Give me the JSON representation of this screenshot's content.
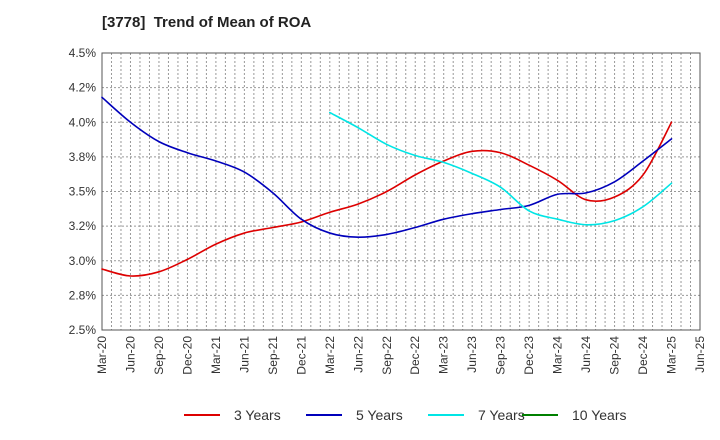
{
  "title": "[3778]  Trend of Mean of ROA",
  "chart_data": {
    "type": "line",
    "title": "[3778]  Trend of Mean of ROA",
    "x_categories": [
      "Mar-20",
      "Jun-20",
      "Sep-20",
      "Dec-20",
      "Mar-21",
      "Jun-21",
      "Sep-21",
      "Dec-21",
      "Mar-22",
      "Jun-22",
      "Sep-22",
      "Dec-22",
      "Mar-23",
      "Jun-23",
      "Sep-23",
      "Dec-23",
      "Mar-24",
      "Jun-24",
      "Sep-24",
      "Dec-24",
      "Mar-25",
      "Jun-25"
    ],
    "y_ticks": [
      "2.5%",
      "2.8%",
      "3.0%",
      "3.2%",
      "3.5%",
      "3.8%",
      "4.0%",
      "4.2%",
      "4.5%"
    ],
    "ylim": [
      2.5,
      4.5
    ],
    "grid": true,
    "legend_position": "bottom",
    "series": [
      {
        "name": "3 Years",
        "color": "#dd0000",
        "values": [
          2.94,
          2.89,
          2.92,
          3.01,
          3.12,
          3.2,
          3.24,
          3.28,
          3.35,
          3.41,
          3.5,
          3.62,
          3.72,
          3.79,
          3.78,
          3.69,
          3.58,
          3.44,
          3.46,
          3.62,
          4.0,
          null
        ]
      },
      {
        "name": "5 Years",
        "color": "#0000bb",
        "values": [
          4.18,
          4.0,
          3.86,
          3.78,
          3.72,
          3.64,
          3.49,
          3.3,
          3.2,
          3.17,
          3.19,
          3.24,
          3.3,
          3.34,
          3.37,
          3.4,
          3.48,
          3.49,
          3.57,
          3.72,
          3.88,
          null
        ]
      },
      {
        "name": "7 Years",
        "color": "#00e5e5",
        "values": [
          null,
          null,
          null,
          null,
          null,
          null,
          null,
          null,
          4.07,
          3.96,
          3.84,
          3.76,
          3.71,
          3.63,
          3.53,
          3.36,
          3.3,
          3.26,
          3.29,
          3.39,
          3.56,
          null
        ]
      },
      {
        "name": "10 Years",
        "color": "#008000",
        "values": [
          null,
          null,
          null,
          null,
          null,
          null,
          null,
          null,
          null,
          null,
          null,
          null,
          null,
          null,
          null,
          null,
          null,
          null,
          null,
          null,
          null,
          null
        ]
      }
    ]
  }
}
